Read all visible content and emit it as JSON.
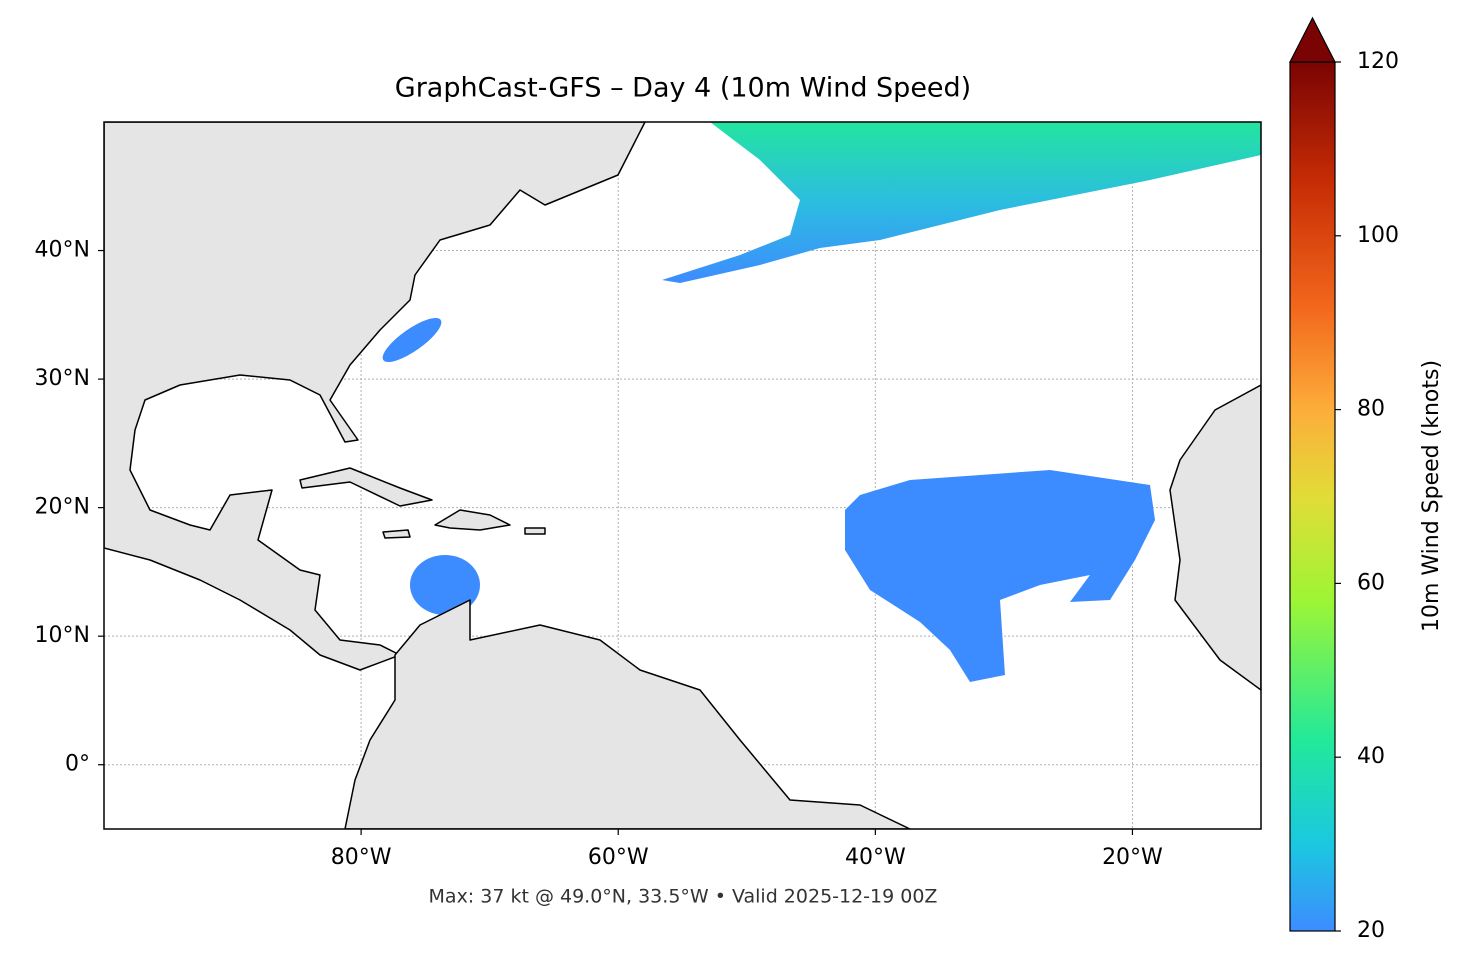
{
  "chart_data": {
    "type": "map",
    "title": "GraphCast-GFS – Day 4 (10m Wind Speed)",
    "footer": "Max: 37 kt @ 49.0°N, 33.5°W • Valid 2025-12-19 00Z",
    "xlim": [
      -100,
      -10
    ],
    "ylim": [
      -5,
      50
    ],
    "xticks": [
      {
        "value": -80,
        "label": "80°W"
      },
      {
        "value": -60,
        "label": "60°W"
      },
      {
        "value": -40,
        "label": "40°W"
      },
      {
        "value": -20,
        "label": "20°W"
      }
    ],
    "yticks": [
      {
        "value": 0,
        "label": "0°"
      },
      {
        "value": 10,
        "label": "10°N"
      },
      {
        "value": 20,
        "label": "20°N"
      },
      {
        "value": 30,
        "label": "30°N"
      },
      {
        "value": 40,
        "label": "40°N"
      }
    ],
    "grid": true,
    "colorbar": {
      "label": "10m Wind Speed (knots)",
      "lim": [
        20,
        120
      ],
      "ticks": [
        20,
        40,
        60,
        80,
        100,
        120
      ],
      "extend": "max"
    }
  }
}
